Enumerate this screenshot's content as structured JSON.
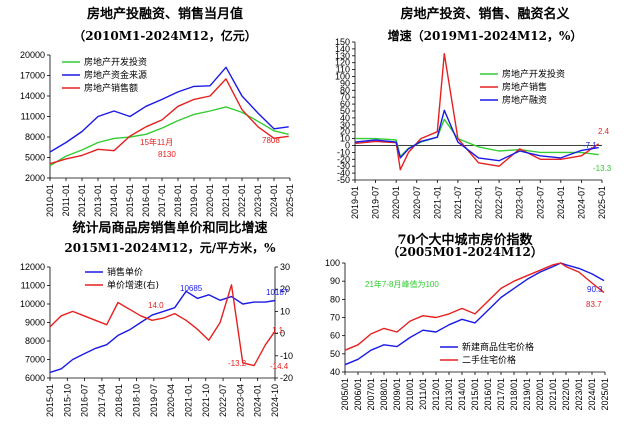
{
  "colors": {
    "green": "#33cc33",
    "blue": "#1a1ae6",
    "red": "#e62020",
    "axis": "#000000",
    "grid": "#000000"
  },
  "chart_data": [
    {
      "type": "line",
      "title": "房地产投融资、销售当月值",
      "subtitle": "（2010M1-2024M12，亿元）",
      "x_tick_labels": [
        "2010-01",
        "2011-01",
        "2012-01",
        "2013-01",
        "2014-01",
        "2015-01",
        "2016-01",
        "2017-01",
        "2018-01",
        "2019-01",
        "2020-01",
        "2021-01",
        "2022-01",
        "2023-01",
        "2024-01",
        "2025-01"
      ],
      "y_tick_labels": [
        "2000",
        "5000",
        "8000",
        "11000",
        "14000",
        "17000",
        "20000"
      ],
      "ylim": [
        2000,
        20000
      ],
      "annotations": [
        "15年11月",
        "8130",
        "7808"
      ],
      "series": [
        {
          "name": "房地产开发投资",
          "color": "#33cc33",
          "x": [
            2010,
            2011,
            2012,
            2013,
            2014,
            2015,
            2016,
            2017,
            2018,
            2019,
            2020,
            2021,
            2022,
            2023,
            2024,
            2024.92
          ],
          "values": [
            3800,
            5200,
            6100,
            7200,
            7800,
            8000,
            8400,
            9300,
            10400,
            11300,
            11800,
            12400,
            11600,
            10300,
            8900,
            8400
          ]
        },
        {
          "name": "房地产资金来源",
          "color": "#1a1ae6",
          "x": [
            2010,
            2011,
            2012,
            2013,
            2014,
            2015,
            2016,
            2017,
            2018,
            2019,
            2020,
            2021,
            2022,
            2023,
            2024,
            2024.92
          ],
          "values": [
            5800,
            7200,
            8800,
            11000,
            11800,
            11000,
            12500,
            13500,
            14600,
            15400,
            15500,
            18200,
            14000,
            11500,
            9200,
            9500
          ]
        },
        {
          "name": "房地产销售额",
          "color": "#e62020",
          "x": [
            2010,
            2011,
            2012,
            2013,
            2014,
            2015,
            2016,
            2017,
            2018,
            2019,
            2020,
            2021,
            2022,
            2023,
            2024,
            2024.92
          ],
          "values": [
            4100,
            4800,
            5300,
            6200,
            6000,
            8130,
            9500,
            10500,
            12500,
            13500,
            14000,
            16500,
            12000,
            9500,
            7808,
            8100
          ]
        }
      ]
    },
    {
      "type": "line",
      "title": "房地产投资、销售、融资名义",
      "subtitle": "增速（2019M1-2024M12，%）",
      "x_tick_labels": [
        "2019-01",
        "2019-07",
        "2020-01",
        "2020-07",
        "2021-01",
        "2021-07",
        "2022-01",
        "2022-07",
        "2023-01",
        "2023-07",
        "2024-01",
        "2024-07",
        "2025-01"
      ],
      "y_tick_labels": [
        "-50",
        "-40",
        "-30",
        "-20",
        "-10",
        "0",
        "10",
        "20",
        "30",
        "40",
        "50",
        "60",
        "70",
        "80",
        "90",
        "100",
        "110",
        "120",
        "130",
        "140",
        "150"
      ],
      "ylim": [
        -50,
        150
      ],
      "annotations": [
        "-7.1",
        "2.4",
        "-13.3"
      ],
      "series": [
        {
          "name": "房地产开发投资",
          "color": "#33cc33",
          "x": [
            2019,
            2019.5,
            2020,
            2020.1,
            2020.3,
            2020.6,
            2021,
            2021.17,
            2021.5,
            2022,
            2022.5,
            2023,
            2023.5,
            2024,
            2024.5,
            2024.92
          ],
          "values": [
            10,
            10,
            8,
            -16,
            -4,
            5,
            12,
            38,
            10,
            -2,
            -8,
            -6,
            -10,
            -10,
            -10,
            -13.3
          ]
        },
        {
          "name": "房地产销售",
          "color": "#e62020",
          "x": [
            2019,
            2019.5,
            2020,
            2020.1,
            2020.3,
            2020.6,
            2021,
            2021.17,
            2021.5,
            2022,
            2022.5,
            2023,
            2023.5,
            2024,
            2024.5,
            2024.92
          ],
          "values": [
            3,
            6,
            4,
            -35,
            -10,
            10,
            20,
            133,
            10,
            -25,
            -30,
            -5,
            -20,
            -20,
            -15,
            2.4
          ]
        },
        {
          "name": "房地产融资",
          "color": "#1a1ae6",
          "x": [
            2019,
            2019.5,
            2020,
            2020.1,
            2020.3,
            2020.6,
            2021,
            2021.17,
            2021.5,
            2022,
            2022.5,
            2023,
            2023.5,
            2024,
            2024.5,
            2024.92
          ],
          "values": [
            5,
            8,
            5,
            -18,
            -5,
            6,
            12,
            51,
            5,
            -18,
            -22,
            -8,
            -15,
            -18,
            -7.1,
            -3
          ]
        }
      ]
    },
    {
      "type": "line",
      "title": "统计局商品房销售单价和同比增速",
      "subtitle": "2015M1-2024M12，元/平方米，%",
      "x_tick_labels": [
        "2015-01",
        "2015-10",
        "2016-07",
        "2017-04",
        "2018-01",
        "2018-10",
        "2019-07",
        "2020-04",
        "2021-01",
        "2021-10",
        "2022-07",
        "2023-04",
        "2024-01",
        "2024-10"
      ],
      "y_tick_labels": [
        "6000",
        "7000",
        "8000",
        "9000",
        "10000",
        "11000",
        "12000"
      ],
      "y2_tick_labels": [
        "-20",
        "-10",
        "0",
        "10",
        "20",
        "30"
      ],
      "ylim": [
        6000,
        12000
      ],
      "y2lim": [
        -20,
        30
      ],
      "annotations": [
        "14.0",
        "10685",
        "10187",
        "-13.2",
        "1.1",
        "-14.4"
      ],
      "series": [
        {
          "name": "销售单价",
          "color": "#1a1ae6",
          "axis": "left",
          "x": [
            2015,
            2015.5,
            2016,
            2016.5,
            2017,
            2017.5,
            2018,
            2018.5,
            2019,
            2019.5,
            2020,
            2020.5,
            2021,
            2021.5,
            2022,
            2022.5,
            2023,
            2023.5,
            2024,
            2024.5,
            2024.92
          ],
          "values": [
            6300,
            6500,
            7000,
            7300,
            7600,
            7800,
            8300,
            8600,
            9000,
            9400,
            9600,
            9800,
            10685,
            10300,
            10500,
            10200,
            10400,
            10000,
            10100,
            10100,
            10187
          ]
        },
        {
          "name": "单价增速(右)",
          "color": "#e62020",
          "axis": "right",
          "x": [
            2015,
            2015.5,
            2016,
            2016.5,
            2017,
            2017.5,
            2018,
            2018.5,
            2019,
            2019.5,
            2020,
            2020.5,
            2021,
            2021.5,
            2022,
            2022.5,
            2023,
            2023.5,
            2024,
            2024.5,
            2024.92
          ],
          "values": [
            3,
            8,
            10,
            8,
            6,
            4,
            14.0,
            11,
            8,
            6,
            7,
            9,
            6,
            2,
            -3,
            5,
            22,
            -13.2,
            -14.4,
            -5,
            1.1
          ]
        }
      ]
    },
    {
      "type": "line",
      "title": "70个大中城市房价指数",
      "subtitle": "（2005M01-2024M12）",
      "x_tick_labels": [
        "2005/01",
        "2006/01",
        "2007/01",
        "2008/01",
        "2009/01",
        "2010/01",
        "2011/01",
        "2012/01",
        "2013/01",
        "2014/01",
        "2015/01",
        "2016/01",
        "2017/01",
        "2018/01",
        "2019/01",
        "2020/01",
        "2021/01",
        "2022/01",
        "2023/01",
        "2024/01",
        "2025/01"
      ],
      "y_tick_labels": [
        "40",
        "50",
        "60",
        "70",
        "80",
        "90",
        "100"
      ],
      "ylim": [
        40,
        100
      ],
      "annotations": [
        "21年7-8月峰值为100",
        "90.3",
        "83.7"
      ],
      "series": [
        {
          "name": "新建商品住宅价格",
          "color": "#1a1ae6",
          "x": [
            2005,
            2006,
            2007,
            2008,
            2009,
            2010,
            2011,
            2012,
            2013,
            2014,
            2015,
            2016,
            2017,
            2018,
            2019,
            2020,
            2021,
            2021.6,
            2022,
            2023,
            2024,
            2024.92
          ],
          "values": [
            44,
            47,
            52,
            55,
            54,
            59,
            63,
            62,
            66,
            69,
            67,
            74,
            81,
            86,
            91,
            95,
            98,
            100,
            99,
            97,
            94,
            90.3
          ]
        },
        {
          "name": "二手住宅价格",
          "color": "#e62020",
          "x": [
            2005,
            2006,
            2007,
            2008,
            2009,
            2010,
            2011,
            2012,
            2013,
            2014,
            2015,
            2016,
            2017,
            2018,
            2019,
            2020,
            2021,
            2021.6,
            2022,
            2023,
            2024,
            2024.92
          ],
          "values": [
            52,
            55,
            61,
            64,
            62,
            68,
            71,
            70,
            72,
            75,
            72,
            79,
            86,
            90,
            93,
            96,
            99,
            100,
            98,
            95,
            89,
            83.7
          ]
        }
      ]
    }
  ]
}
